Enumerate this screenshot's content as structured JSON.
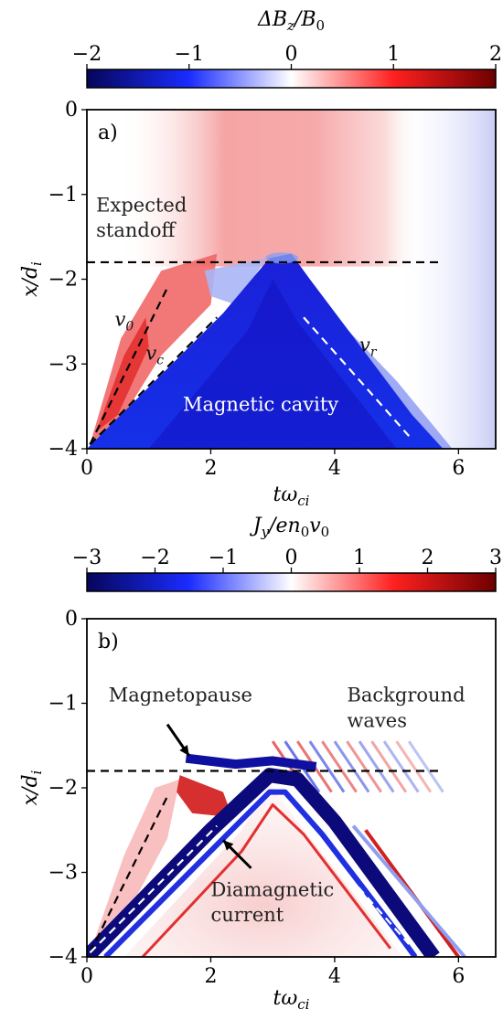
{
  "colors": {
    "negative_end": "#06065a",
    "negative_mid": "#1a2cff",
    "neutral": "#ffffff",
    "positive_mid": "#ff2020",
    "positive_end": "#6e0000",
    "dashed_black": "#000000",
    "dashed_white": "#ffffff"
  },
  "chart_data": [
    {
      "type": "heatmap",
      "panel_label": "a)",
      "colorbar": {
        "label_num": "ΔB",
        "label_sub": "z",
        "label_rest": "/B",
        "label_sub2": "0",
        "ticks": [
          "−2",
          "−1",
          "0",
          "1",
          "2"
        ],
        "tick_values": [
          -2,
          -1,
          0,
          1,
          2
        ],
        "range": [
          -2,
          2
        ]
      },
      "xlabel_main": "tω",
      "xlabel_sub": "ci",
      "ylabel_main": "x/d",
      "ylabel_sub": "i",
      "xlim": [
        0,
        6.6
      ],
      "ylim": [
        -4,
        0
      ],
      "xticks": [
        "0",
        "2",
        "4",
        "6"
      ],
      "xtick_values": [
        0,
        2,
        4,
        6
      ],
      "yticks": [
        "0",
        "−1",
        "−2",
        "−3",
        "−4"
      ],
      "ytick_values": [
        0,
        -1,
        -2,
        -3,
        -4
      ],
      "grid": false,
      "lines": [
        {
          "style": "dashed-black",
          "x": [
            0,
            5.7
          ],
          "y": [
            -1.8,
            -1.8
          ]
        },
        {
          "style": "dashed-black",
          "x": [
            0.05,
            1.3
          ],
          "y": [
            -3.95,
            -2.1
          ]
        },
        {
          "style": "dashed-black",
          "x": [
            0.05,
            2.1
          ],
          "y": [
            -3.95,
            -2.45
          ]
        },
        {
          "style": "dashed-white",
          "x": [
            3.5,
            5.2
          ],
          "y": [
            -2.45,
            -3.85
          ]
        }
      ],
      "annotations": [
        {
          "text": "Expected",
          "x": 0.15,
          "y": -1.2
        },
        {
          "text": "standoff",
          "x": 0.15,
          "y": -1.5
        },
        {
          "text": "Magnetic cavity",
          "x": 1.55,
          "y": -3.55
        }
      ],
      "line_labels": [
        {
          "main": "v",
          "sub": "0",
          "x": 0.45,
          "y": -2.55
        },
        {
          "main": "v",
          "sub": "c",
          "x": 0.95,
          "y": -2.95
        },
        {
          "main": "v",
          "sub": "r",
          "x": 4.4,
          "y": -2.85
        }
      ]
    },
    {
      "type": "heatmap",
      "panel_label": "b)",
      "colorbar": {
        "label_num": "J",
        "label_sub": "y",
        "label_rest": "/en",
        "label_sub2": "0",
        "label_tail": "v",
        "label_sub3": "0",
        "ticks": [
          "−3",
          "−2",
          "−1",
          "0",
          "1",
          "2",
          "3"
        ],
        "tick_values": [
          -3,
          -2,
          -1,
          0,
          1,
          2,
          3
        ],
        "range": [
          -3,
          3
        ]
      },
      "xlabel_main": "tω",
      "xlabel_sub": "ci",
      "ylabel_main": "x/d",
      "ylabel_sub": "i",
      "xlim": [
        0,
        6.6
      ],
      "ylim": [
        -4,
        0
      ],
      "xticks": [
        "0",
        "2",
        "4",
        "6"
      ],
      "xtick_values": [
        0,
        2,
        4,
        6
      ],
      "yticks": [
        "0",
        "−1",
        "−2",
        "−3",
        "−4"
      ],
      "ytick_values": [
        0,
        -1,
        -2,
        -3,
        -4
      ],
      "grid": false,
      "lines": [
        {
          "style": "dashed-black",
          "x": [
            0,
            5.7
          ],
          "y": [
            -1.8,
            -1.8
          ]
        },
        {
          "style": "dashed-black",
          "x": [
            0.05,
            1.3
          ],
          "y": [
            -3.95,
            -2.1
          ]
        },
        {
          "style": "dashed-white",
          "x": [
            0.05,
            2.1
          ],
          "y": [
            -3.95,
            -2.45
          ]
        },
        {
          "style": "dashed-white",
          "x": [
            3.5,
            5.2
          ],
          "y": [
            -2.45,
            -3.85
          ]
        }
      ],
      "annotations": [
        {
          "text": "Magnetopause",
          "x": 0.35,
          "y": -0.98
        },
        {
          "text": "Background",
          "x": 4.2,
          "y": -0.98
        },
        {
          "text": "waves",
          "x": 4.2,
          "y": -1.28
        },
        {
          "text": "Diamagnetic",
          "x": 2.0,
          "y": -3.28
        },
        {
          "text": "current",
          "x": 2.0,
          "y": -3.58
        }
      ],
      "arrows": [
        {
          "from": [
            1.3,
            -1.25
          ],
          "to": [
            1.65,
            -1.62
          ]
        },
        {
          "from": [
            2.65,
            -2.95
          ],
          "to": [
            2.2,
            -2.62
          ]
        }
      ]
    }
  ]
}
